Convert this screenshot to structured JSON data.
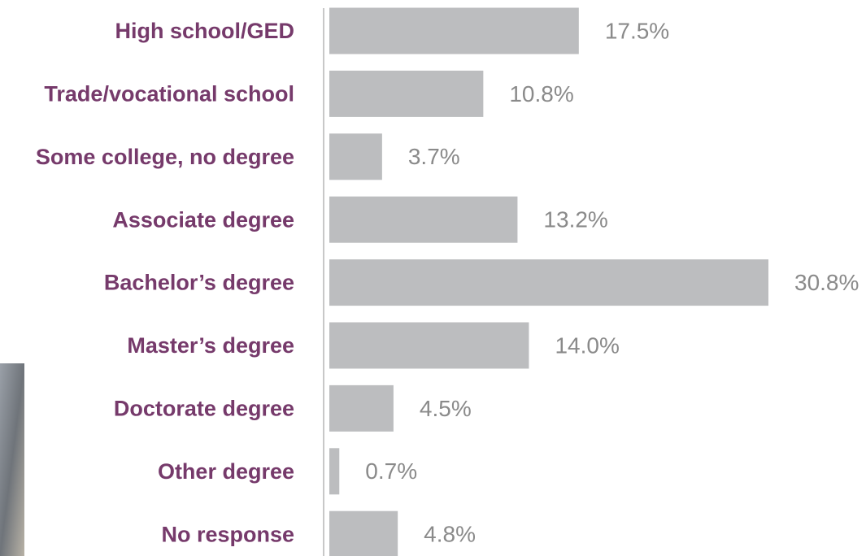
{
  "chart_data": {
    "type": "barh",
    "categories": [
      "High school/GED",
      "Trade/vocational school",
      "Some college, no degree",
      "Associate degree",
      "Bachelor’s degree",
      "Master’s degree",
      "Doctorate degree",
      "Other degree",
      "No response"
    ],
    "values": [
      17.5,
      10.8,
      3.7,
      13.2,
      30.8,
      14.0,
      4.5,
      0.7,
      4.8
    ],
    "value_labels": [
      "17.5%",
      "10.8%",
      "3.7%",
      "13.2%",
      "30.8%",
      "14.0%",
      "4.5%",
      "0.7%",
      "4.8%"
    ],
    "color": "#bcbdbf"
  }
}
